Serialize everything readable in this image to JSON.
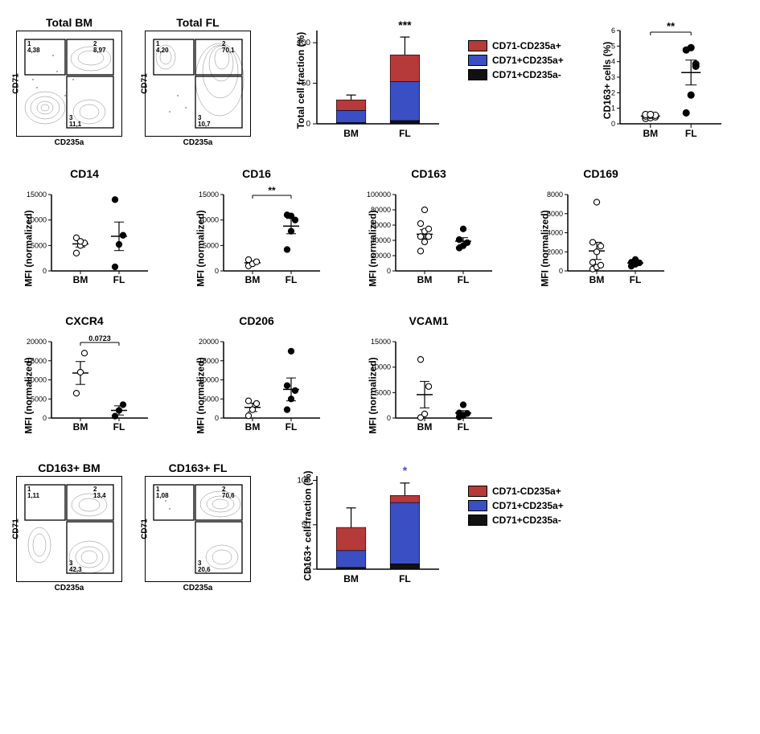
{
  "colors": {
    "red": "#b63a3a",
    "blue": "#3a4fc4",
    "black": "#111111",
    "axis": "#000000",
    "contour": "#555555"
  },
  "facs": {
    "x_label": "CD235a",
    "y_label": "CD71",
    "total_bm": {
      "title": "Total BM",
      "q1": "4,38",
      "q2": "8,97",
      "q3": "11,1"
    },
    "total_fl": {
      "title": "Total FL",
      "q1": "4,20",
      "q2": "70,1",
      "q3": "10,7"
    },
    "cd163_bm": {
      "title": "CD163+ BM",
      "q1": "1,11",
      "q2": "13,4",
      "q3": "42,3"
    },
    "cd163_fl": {
      "title": "CD163+ FL",
      "q1": "1,08",
      "q2": "70,6",
      "q3": "20,6"
    }
  },
  "stacked_top": {
    "ylabel": "Total cell fraction (%)",
    "ylim": [
      0,
      115
    ],
    "ytick_step": 50,
    "categories": [
      "BM",
      "FL"
    ],
    "significance": "***",
    "sig_color": "#000000",
    "series": [
      {
        "name": "CD71+CD235a-",
        "key": "black"
      },
      {
        "name": "CD71+CD235a+",
        "key": "blue"
      },
      {
        "name": "CD71-CD235a+",
        "key": "red"
      }
    ],
    "data": {
      "BM": {
        "black": 1.5,
        "blue": 15,
        "red": 13,
        "err_red": 6
      },
      "FL": {
        "black": 4,
        "blue": 48,
        "red": 33,
        "err_red": 22
      }
    },
    "legend": [
      {
        "label": "CD71-CD235a+",
        "key": "red"
      },
      {
        "label": "CD71+CD235a+",
        "key": "blue"
      },
      {
        "label": "CD71+CD235a-",
        "key": "black"
      }
    ]
  },
  "cd163_dot": {
    "title": null,
    "ylabel": "CD163+ cells (%)",
    "ylim": [
      0,
      6
    ],
    "ytick_step": 1,
    "categories": [
      "BM",
      "FL"
    ],
    "significance": "**",
    "data": {
      "BM": {
        "points": [
          0.35,
          0.4,
          0.45,
          0.5,
          0.55,
          0.55,
          0.6,
          0.6
        ],
        "mean": 0.5,
        "sem": 0.1
      },
      "FL": {
        "points": [
          0.7,
          1.85,
          3.85,
          4.75,
          4.9,
          3.7
        ],
        "mean": 3.3,
        "sem": 0.8
      }
    }
  },
  "mfi_panels": [
    {
      "title": "CD14",
      "ylim": [
        0,
        15000
      ],
      "ytick_step": 5000,
      "BM": {
        "points": [
          3500,
          5000,
          5500,
          6500,
          5800
        ],
        "mean": 5300,
        "sem": 600
      },
      "FL": {
        "points": [
          800,
          5200,
          7000,
          14000
        ],
        "mean": 6800,
        "sem": 2800
      }
    },
    {
      "title": "CD16",
      "ylim": [
        0,
        15000
      ],
      "ytick_step": 5000,
      "significance": "**",
      "BM": {
        "points": [
          1000,
          1400,
          1800,
          2200
        ],
        "mean": 1600,
        "sem": 300
      },
      "FL": {
        "points": [
          4200,
          7800,
          10000,
          11000,
          10800
        ],
        "mean": 8800,
        "sem": 1500
      }
    },
    {
      "title": "CD163",
      "ylim": [
        0,
        100000
      ],
      "ytick_step": 20000,
      "BM": {
        "points": [
          26000,
          38000,
          45000,
          45000,
          52000,
          55000,
          62000,
          80000
        ],
        "mean": 48000,
        "sem": 6000
      },
      "FL": {
        "points": [
          30000,
          33000,
          37000,
          41000,
          55000
        ],
        "mean": 39000,
        "sem": 4500
      }
    },
    {
      "title": "CD169",
      "ylim": [
        0,
        8000
      ],
      "ytick_step": 2000,
      "BM": {
        "points": [
          200,
          400,
          600,
          900,
          2000,
          2600,
          3000,
          7200
        ],
        "mean": 2100,
        "sem": 900
      },
      "FL": {
        "points": [
          500,
          700,
          850,
          900,
          1200
        ],
        "mean": 830,
        "sem": 150
      }
    },
    {
      "title": "CXCR4",
      "ylim": [
        0,
        20000
      ],
      "ytick_step": 5000,
      "pvalue": "0.0723",
      "BM": {
        "points": [
          6500,
          12000,
          17000
        ],
        "mean": 11800,
        "sem": 3000
      },
      "FL": {
        "points": [
          500,
          2000,
          3500
        ],
        "mean": 2000,
        "sem": 1200
      }
    },
    {
      "title": "CD206",
      "ylim": [
        0,
        20000
      ],
      "ytick_step": 5000,
      "BM": {
        "points": [
          600,
          2200,
          3800,
          4500
        ],
        "mean": 2800,
        "sem": 1100
      },
      "FL": {
        "points": [
          2200,
          5000,
          7200,
          8500,
          17500
        ],
        "mean": 7500,
        "sem": 3000
      }
    },
    {
      "title": "VCAM1",
      "ylim": [
        0,
        15000
      ],
      "ytick_step": 5000,
      "BM": {
        "points": [
          100,
          800,
          6200,
          11500
        ],
        "mean": 4600,
        "sem": 2600
      },
      "FL": {
        "points": [
          200,
          500,
          900,
          1000,
          2600
        ],
        "mean": 1000,
        "sem": 450
      }
    }
  ],
  "stacked_bottom": {
    "ylabel": "CD163+ cell fraction (%)",
    "ylim": [
      0,
      105
    ],
    "ytick_step": 50,
    "categories": [
      "BM",
      "FL"
    ],
    "significance": "*",
    "sig_color": "#3a4fc4",
    "data": {
      "BM": {
        "black": 2,
        "blue": 19,
        "red": 26,
        "err_red": 22
      },
      "FL": {
        "black": 6,
        "blue": 69,
        "red": 8,
        "err_red": 14
      }
    },
    "legend": [
      {
        "label": "CD71-CD235a+",
        "key": "red"
      },
      {
        "label": "CD71+CD235a+",
        "key": "blue"
      },
      {
        "label": "CD71+CD235a-",
        "key": "black"
      }
    ]
  }
}
